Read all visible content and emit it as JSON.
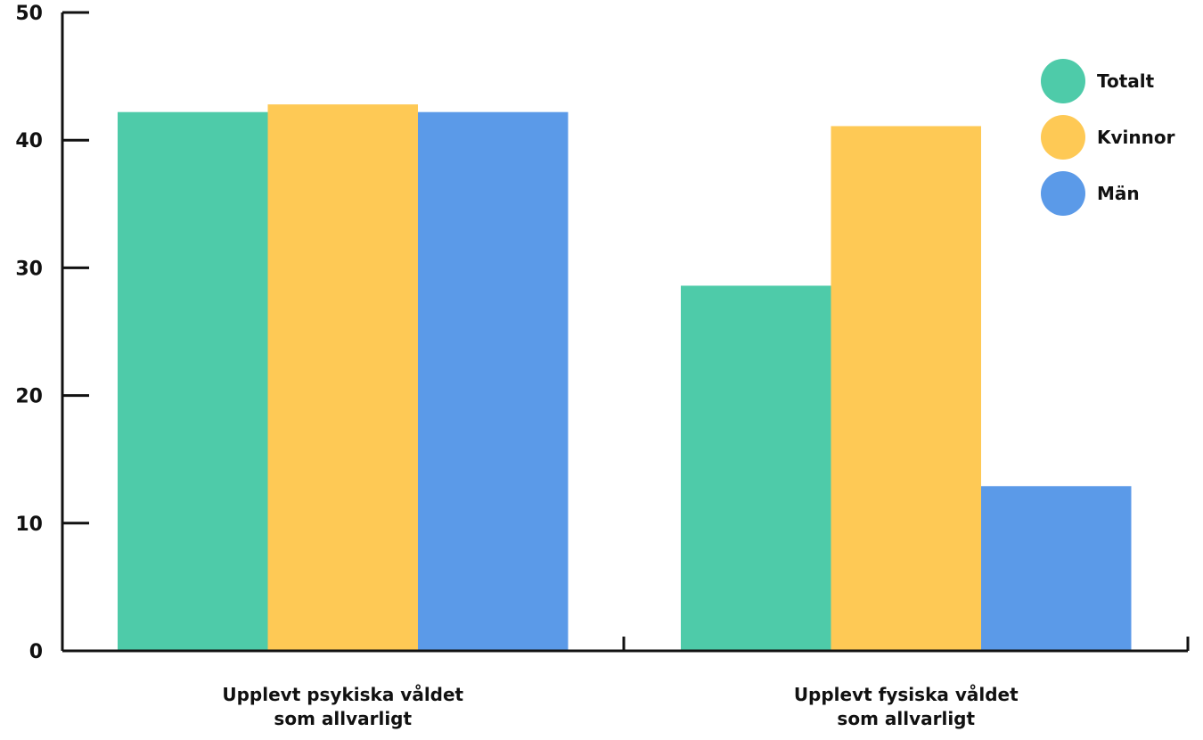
{
  "chart_data": {
    "type": "bar",
    "title": "",
    "xlabel": "",
    "ylabel": "",
    "ylim": [
      0,
      50
    ],
    "yticks": [
      "0",
      "10",
      "20",
      "30",
      "40",
      "50"
    ],
    "categories": [
      [
        "Upplevt psykiska våldet",
        "som allvarligt"
      ],
      [
        "Upplevt fysiska våldet",
        "som allvarligt"
      ]
    ],
    "series": [
      {
        "name": "Totalt",
        "color": "#4ecba9",
        "values": [
          42.2,
          28.6
        ]
      },
      {
        "name": "Kvinnor",
        "color": "#fec955",
        "values": [
          42.8,
          41.1
        ]
      },
      {
        "name": "Män",
        "color": "#5b9ae8",
        "values": [
          42.2,
          12.9
        ]
      }
    ],
    "legend_position": "top-right",
    "grid": false
  }
}
